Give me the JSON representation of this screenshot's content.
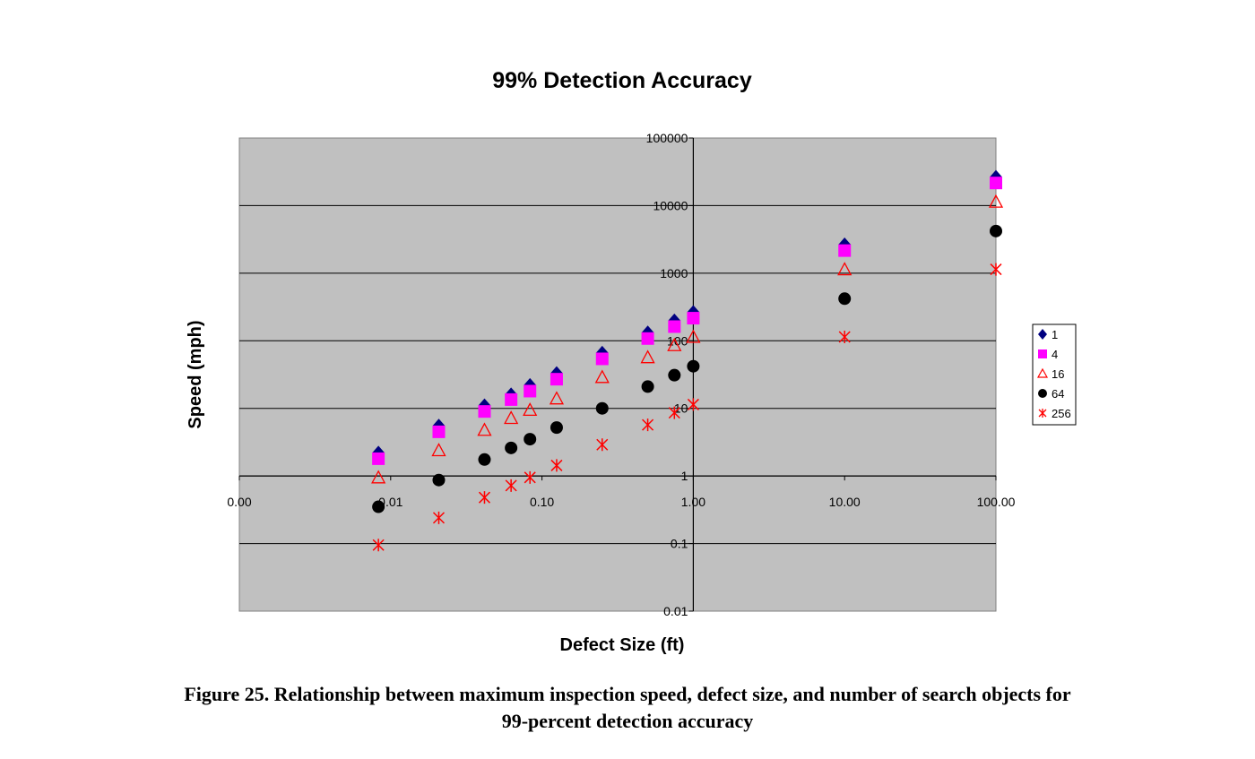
{
  "chart_data": {
    "type": "scatter",
    "title": "99% Detection Accuracy",
    "xlabel": "Defect Size (ft)",
    "ylabel": "Speed (mph)",
    "x_scale": "log",
    "y_scale": "log",
    "xlim": [
      0.001,
      100
    ],
    "ylim": [
      0.01,
      100000
    ],
    "x_ticks": [
      "0.00",
      "0.01",
      "0.10",
      "1.00",
      "10.00",
      "100.00"
    ],
    "y_ticks": [
      "0.01",
      "0.1",
      "1",
      "10",
      "100",
      "1000",
      "10000",
      "100000"
    ],
    "grid": "horizontal",
    "plot_background": "#c0c0c0",
    "legend_position": "right",
    "series": [
      {
        "name": "1",
        "marker": "diamond",
        "color": "#000080",
        "points": [
          [
            0.0083,
            2.2
          ],
          [
            0.0208,
            5.5
          ],
          [
            0.0417,
            11
          ],
          [
            0.0625,
            16
          ],
          [
            0.0833,
            22
          ],
          [
            0.125,
            33
          ],
          [
            0.25,
            66
          ],
          [
            0.5,
            132
          ],
          [
            0.75,
            198
          ],
          [
            1,
            264
          ],
          [
            10,
            2640
          ],
          [
            100,
            26400
          ]
        ]
      },
      {
        "name": "4",
        "marker": "square",
        "color": "#ff00ff",
        "points": [
          [
            0.0083,
            1.8
          ],
          [
            0.0208,
            4.5
          ],
          [
            0.0417,
            9
          ],
          [
            0.0625,
            13.5
          ],
          [
            0.0833,
            18
          ],
          [
            0.125,
            27
          ],
          [
            0.25,
            54
          ],
          [
            0.5,
            108
          ],
          [
            0.75,
            162
          ],
          [
            1,
            216
          ],
          [
            10,
            2160
          ],
          [
            100,
            21600
          ]
        ]
      },
      {
        "name": "16",
        "marker": "triangle-open",
        "color": "#ff0000",
        "points": [
          [
            0.0083,
            0.95
          ],
          [
            0.0208,
            2.4
          ],
          [
            0.0417,
            4.8
          ],
          [
            0.0625,
            7.2
          ],
          [
            0.0833,
            9.5
          ],
          [
            0.125,
            14
          ],
          [
            0.25,
            29
          ],
          [
            0.5,
            57
          ],
          [
            0.75,
            86
          ],
          [
            1,
            114
          ],
          [
            10,
            1140
          ],
          [
            100,
            11400
          ]
        ]
      },
      {
        "name": "64",
        "marker": "circle",
        "color": "#000000",
        "points": [
          [
            0.0083,
            0.35
          ],
          [
            0.0208,
            0.87
          ],
          [
            0.0417,
            1.75
          ],
          [
            0.0625,
            2.6
          ],
          [
            0.0833,
            3.5
          ],
          [
            0.125,
            5.2
          ],
          [
            0.25,
            10
          ],
          [
            0.5,
            21
          ],
          [
            0.75,
            31
          ],
          [
            1,
            42
          ],
          [
            10,
            420
          ],
          [
            100,
            4200
          ]
        ]
      },
      {
        "name": "256",
        "marker": "asterisk",
        "color": "#ff0000",
        "points": [
          [
            0.0083,
            0.095
          ],
          [
            0.0208,
            0.24
          ],
          [
            0.0417,
            0.48
          ],
          [
            0.0625,
            0.72
          ],
          [
            0.0833,
            0.95
          ],
          [
            0.125,
            1.43
          ],
          [
            0.25,
            2.9
          ],
          [
            0.5,
            5.7
          ],
          [
            0.75,
            8.6
          ],
          [
            1,
            11.4
          ],
          [
            10,
            114
          ],
          [
            100,
            1140
          ]
        ]
      }
    ]
  },
  "caption": {
    "line1": "Figure 25.  Relationship between maximum inspection speed, defect size, and number of search objects for",
    "line2": "99-percent detection accuracy"
  }
}
